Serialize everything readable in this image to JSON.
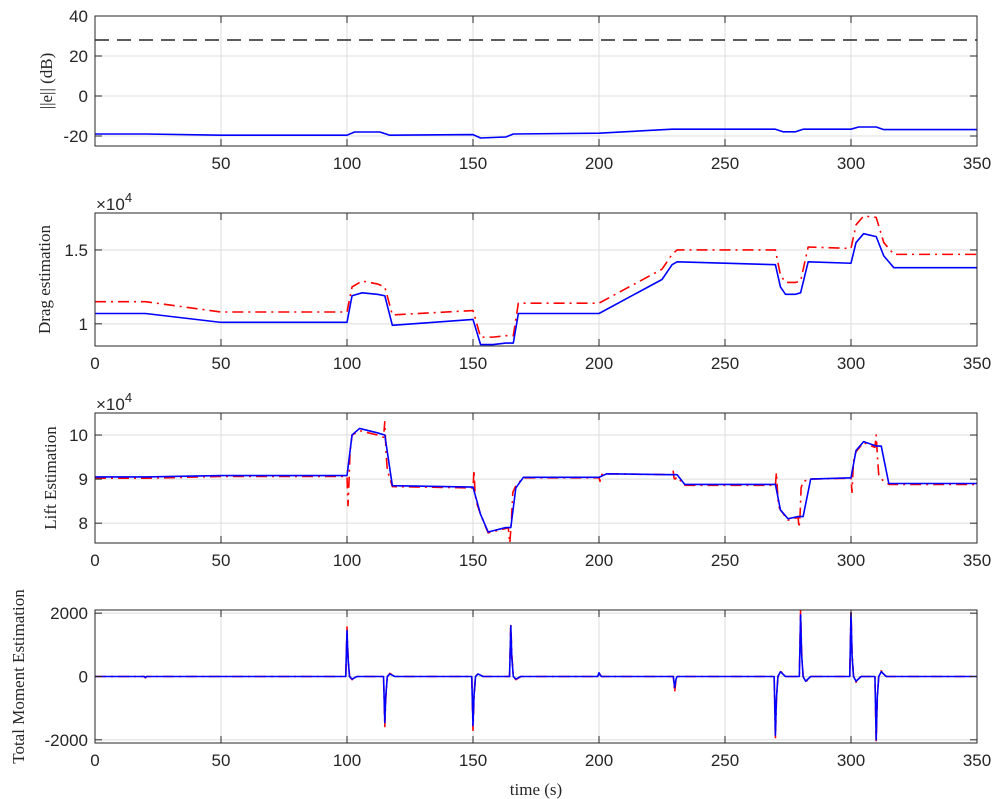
{
  "chart_data": [
    {
      "type": "line",
      "ylabel": "||e|| (dB)",
      "xlabel": "",
      "xlim": [
        0,
        350
      ],
      "ylim": [
        -25,
        40
      ],
      "xticks": [
        50,
        100,
        150,
        200,
        250,
        300,
        350
      ],
      "yticks": [
        -20,
        0,
        20,
        40
      ],
      "exponent": "",
      "grid": true,
      "series": [
        {
          "color": "#0000ff",
          "dash": "solid",
          "x": [
            0,
            20,
            50,
            100,
            103,
            113,
            117,
            150,
            153,
            163,
            166,
            200,
            229,
            231,
            270,
            273,
            278,
            281,
            300,
            303,
            310,
            313,
            350
          ],
          "y": [
            -19,
            -19,
            -19.6,
            -19.6,
            -18,
            -18,
            -19.6,
            -19.3,
            -21,
            -20.5,
            -19,
            -18.6,
            -16.6,
            -16.6,
            -16.6,
            -17.9,
            -17.9,
            -16.6,
            -16.6,
            -15.5,
            -15.5,
            -16.8,
            -16.8
          ]
        },
        {
          "color": "#262626",
          "dash": "dashed",
          "x": [
            0,
            350
          ],
          "y": [
            28,
            28
          ]
        }
      ]
    },
    {
      "type": "line",
      "ylabel": "Drag estimation",
      "xlabel": "",
      "xlim": [
        0,
        350
      ],
      "ylim": [
        0.85,
        1.75
      ],
      "xticks": [
        0,
        50,
        100,
        150,
        200,
        250,
        300,
        350
      ],
      "yticks": [
        1,
        1.5
      ],
      "exponent": "4",
      "grid": true,
      "series": [
        {
          "color": "#0000ff",
          "dash": "solid",
          "x": [
            0,
            20,
            50,
            100,
            102,
            106,
            112,
            115,
            118,
            150,
            153,
            158,
            163,
            166,
            168,
            200,
            225,
            229,
            231,
            270,
            272,
            274,
            278,
            280,
            283,
            300,
            302,
            305,
            310,
            313,
            317,
            350
          ],
          "y": [
            1.07,
            1.07,
            1.01,
            1.01,
            1.19,
            1.21,
            1.2,
            1.19,
            0.99,
            1.03,
            0.86,
            0.86,
            0.87,
            0.87,
            1.07,
            1.07,
            1.3,
            1.4,
            1.42,
            1.4,
            1.25,
            1.2,
            1.2,
            1.21,
            1.42,
            1.41,
            1.55,
            1.61,
            1.59,
            1.46,
            1.38,
            1.38
          ]
        },
        {
          "color": "#ff0000",
          "dash": "dashdot",
          "x": [
            0,
            20,
            50,
            100,
            102,
            106,
            112,
            115,
            118,
            150,
            153,
            158,
            163,
            166,
            168,
            200,
            225,
            229,
            231,
            270,
            272,
            274,
            278,
            280,
            283,
            300,
            302,
            305,
            310,
            313,
            317,
            350
          ],
          "y": [
            1.15,
            1.15,
            1.08,
            1.08,
            1.25,
            1.29,
            1.27,
            1.25,
            1.06,
            1.09,
            0.91,
            0.91,
            0.92,
            0.92,
            1.14,
            1.14,
            1.37,
            1.47,
            1.5,
            1.5,
            1.33,
            1.28,
            1.28,
            1.29,
            1.52,
            1.51,
            1.67,
            1.73,
            1.72,
            1.55,
            1.47,
            1.47
          ]
        }
      ]
    },
    {
      "type": "line",
      "ylabel": "Lift Estimation",
      "xlabel": "",
      "xlim": [
        0,
        350
      ],
      "ylim": [
        7.55,
        10.5
      ],
      "xticks": [
        0,
        50,
        100,
        150,
        200,
        250,
        300,
        350
      ],
      "yticks": [
        8,
        9,
        10
      ],
      "exponent": "4",
      "grid": true,
      "series": [
        {
          "color": "#0000ff",
          "dash": "solid",
          "x": [
            0,
            20,
            50,
            100,
            102,
            105,
            112,
            115,
            118,
            150,
            153,
            156,
            163,
            165,
            167,
            170,
            200,
            203,
            229,
            231,
            234,
            270,
            272,
            275,
            279,
            281,
            284,
            300,
            302,
            305,
            310,
            312,
            315,
            350
          ],
          "y": [
            9.05,
            9.05,
            9.08,
            9.08,
            10,
            10.15,
            10.05,
            10,
            8.85,
            8.82,
            8.2,
            7.8,
            7.9,
            7.9,
            8.8,
            9.04,
            9.04,
            9.12,
            9.1,
            9.1,
            8.88,
            8.88,
            8.3,
            8.1,
            8.15,
            8.15,
            9.0,
            9.03,
            9.65,
            9.85,
            9.75,
            9.75,
            8.9,
            8.9
          ]
        },
        {
          "color": "#ff0000",
          "dash": "dashdot",
          "x": [
            0,
            20,
            50,
            100,
            100.4,
            100.8,
            101.2,
            102,
            105,
            112,
            114.5,
            115,
            115.5,
            116,
            118,
            150,
            150.4,
            150.8,
            151.2,
            153,
            156,
            163,
            164,
            164.6,
            165.2,
            165.8,
            167,
            170,
            200,
            200.4,
            200.8,
            203,
            229,
            229.4,
            229.8,
            230.2,
            231,
            234,
            270,
            270.4,
            270.8,
            271.2,
            272,
            275,
            279,
            279.4,
            279.8,
            280.2,
            281,
            284,
            300,
            300.4,
            300.8,
            301.2,
            302,
            305,
            309.5,
            310,
            310.5,
            311,
            312,
            315,
            350
          ],
          "y": [
            9.02,
            9.02,
            9.06,
            9.06,
            8.4,
            8.95,
            9.6,
            10.0,
            10.1,
            10.0,
            9.95,
            10.3,
            9.6,
            9.2,
            8.83,
            8.8,
            9.2,
            8.7,
            8.5,
            8.2,
            7.78,
            7.88,
            7.9,
            7.55,
            8.0,
            8.7,
            8.85,
            9.03,
            9.03,
            8.95,
            9.1,
            9.12,
            9.1,
            9.2,
            9.02,
            9.0,
            9.05,
            8.86,
            8.86,
            9.15,
            8.75,
            8.4,
            8.3,
            8.07,
            8.13,
            7.9,
            8.2,
            8.8,
            8.95,
            9.0,
            9.02,
            8.7,
            9.2,
            9.5,
            9.62,
            9.83,
            9.72,
            10.0,
            9.5,
            9.1,
            9.0,
            8.88,
            8.88
          ]
        }
      ]
    },
    {
      "type": "line",
      "ylabel": "Total Moment Estimation",
      "xlabel": "time (s)",
      "xlim": [
        0,
        350
      ],
      "ylim": [
        -2100,
        2100
      ],
      "xticks": [
        0,
        50,
        100,
        150,
        200,
        250,
        300,
        350
      ],
      "yticks": [
        -2000,
        0,
        2000
      ],
      "ytick_labels": [
        "-2000",
        "0",
        "2000"
      ],
      "exponent": "",
      "grid": true,
      "series": [
        {
          "color": "#0000ff",
          "dash": "solid",
          "x": [
            0,
            19.5,
            20,
            20.5,
            50,
            99.5,
            100,
            100.4,
            101,
            102,
            104,
            114.5,
            115,
            115.4,
            116,
            117,
            119,
            149.5,
            150,
            150.4,
            151,
            152,
            154,
            164.5,
            165,
            165.4,
            166,
            167,
            169,
            199.5,
            200,
            200.5,
            201,
            229.5,
            230,
            230.5,
            231,
            269.5,
            270,
            270.4,
            271,
            272,
            274,
            279.5,
            280,
            280.4,
            281,
            282,
            284,
            299.5,
            300,
            300.4,
            301,
            302,
            304,
            309.5,
            310,
            310.4,
            311,
            312,
            314,
            350
          ],
          "y": [
            0,
            0,
            -30,
            0,
            0,
            0,
            1450,
            600,
            0,
            -80,
            0,
            0,
            -1450,
            -600,
            0,
            80,
            0,
            0,
            -1550,
            -600,
            0,
            80,
            0,
            0,
            1600,
            600,
            0,
            -80,
            0,
            0,
            120,
            40,
            0,
            0,
            -350,
            -100,
            0,
            0,
            -1850,
            -700,
            0,
            150,
            0,
            0,
            1950,
            700,
            0,
            -150,
            0,
            0,
            2000,
            700,
            0,
            -150,
            0,
            0,
            -2000,
            -700,
            0,
            150,
            0,
            0
          ]
        },
        {
          "color": "#ff0000",
          "dash": "dashdot",
          "x": [
            0,
            19.5,
            20,
            20.5,
            50,
            99.5,
            100,
            100.4,
            101,
            102,
            104,
            114.5,
            115,
            115.4,
            116,
            117,
            119,
            149.5,
            150,
            150.4,
            151,
            152,
            154,
            164.5,
            165,
            165.4,
            166,
            167,
            169,
            199.5,
            200,
            200.5,
            201,
            229.5,
            230,
            230.5,
            231,
            269.5,
            270,
            270.4,
            271,
            272,
            274,
            279.5,
            280,
            280.4,
            281,
            282,
            284,
            299.5,
            300,
            300.4,
            301,
            302,
            304,
            309.5,
            310,
            310.4,
            311,
            312,
            314,
            350
          ],
          "y": [
            0,
            0,
            -40,
            0,
            0,
            0,
            1560,
            700,
            0,
            -100,
            0,
            0,
            -1580,
            -700,
            0,
            100,
            0,
            0,
            -1700,
            -700,
            0,
            100,
            0,
            0,
            1700,
            700,
            0,
            -100,
            0,
            0,
            150,
            50,
            0,
            0,
            -500,
            -150,
            0,
            0,
            -2000,
            -800,
            0,
            180,
            0,
            0,
            2100,
            800,
            0,
            -180,
            0,
            0,
            2100,
            800,
            0,
            -180,
            0,
            0,
            -2100,
            -800,
            0,
            180,
            0,
            0
          ]
        }
      ]
    }
  ]
}
